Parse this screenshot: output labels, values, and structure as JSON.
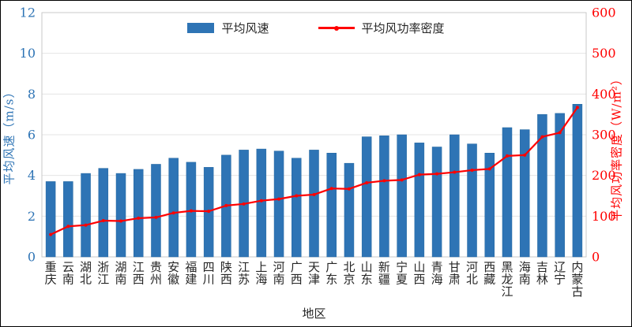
{
  "chart_data": {
    "type": "bar+line combo",
    "categories": [
      "重庆",
      "云南",
      "湖北",
      "浙江",
      "湖南",
      "江西",
      "贵州",
      "安徽",
      "福建",
      "四川",
      "陕西",
      "江苏",
      "上海",
      "河南",
      "广西",
      "天津",
      "广东",
      "北京",
      "山东",
      "新疆",
      "宁夏",
      "山西",
      "青海",
      "甘肃",
      "河北",
      "西藏",
      "黑龙江",
      "海南",
      "吉林",
      "辽宁",
      "内蒙古"
    ],
    "series": [
      {
        "name": "平均风速",
        "type": "bar",
        "axis": "left",
        "color": "#2E74B5",
        "values": [
          3.7,
          3.7,
          4.1,
          4.35,
          4.1,
          4.3,
          4.55,
          4.85,
          4.65,
          4.4,
          5.0,
          5.25,
          5.3,
          5.2,
          4.85,
          5.25,
          5.1,
          4.6,
          5.9,
          5.95,
          6.0,
          5.6,
          5.4,
          6.0,
          5.55,
          5.1,
          6.35,
          6.25,
          7.0,
          7.05,
          7.5
        ]
      },
      {
        "name": "平均风功率密度",
        "type": "line",
        "axis": "right",
        "color": "#FF0000",
        "values": [
          55,
          75,
          78,
          89,
          88,
          95,
          97,
          108,
          113,
          112,
          126,
          130,
          138,
          142,
          150,
          153,
          168,
          167,
          182,
          187,
          189,
          202,
          204,
          208,
          213,
          216,
          248,
          250,
          295,
          305,
          367
        ]
      }
    ],
    "left_axis": {
      "label": "平均风速（m/s）",
      "ticks": [
        0,
        2,
        4,
        6,
        8,
        10,
        12
      ],
      "range": [
        0,
        12
      ],
      "color": "#2E74B5"
    },
    "right_axis": {
      "label": "平均风功率密度（W/m²）",
      "ticks": [
        0,
        100,
        200,
        300,
        400,
        500,
        600
      ],
      "range": [
        0,
        600
      ],
      "color": "#FF0000"
    },
    "x_axis": {
      "label": "地区",
      "tick_color": "#262626"
    },
    "grid": true,
    "grid_color": "#E4E4E4",
    "spine_color": "#C9C9C9",
    "legend_position": "top-center"
  }
}
